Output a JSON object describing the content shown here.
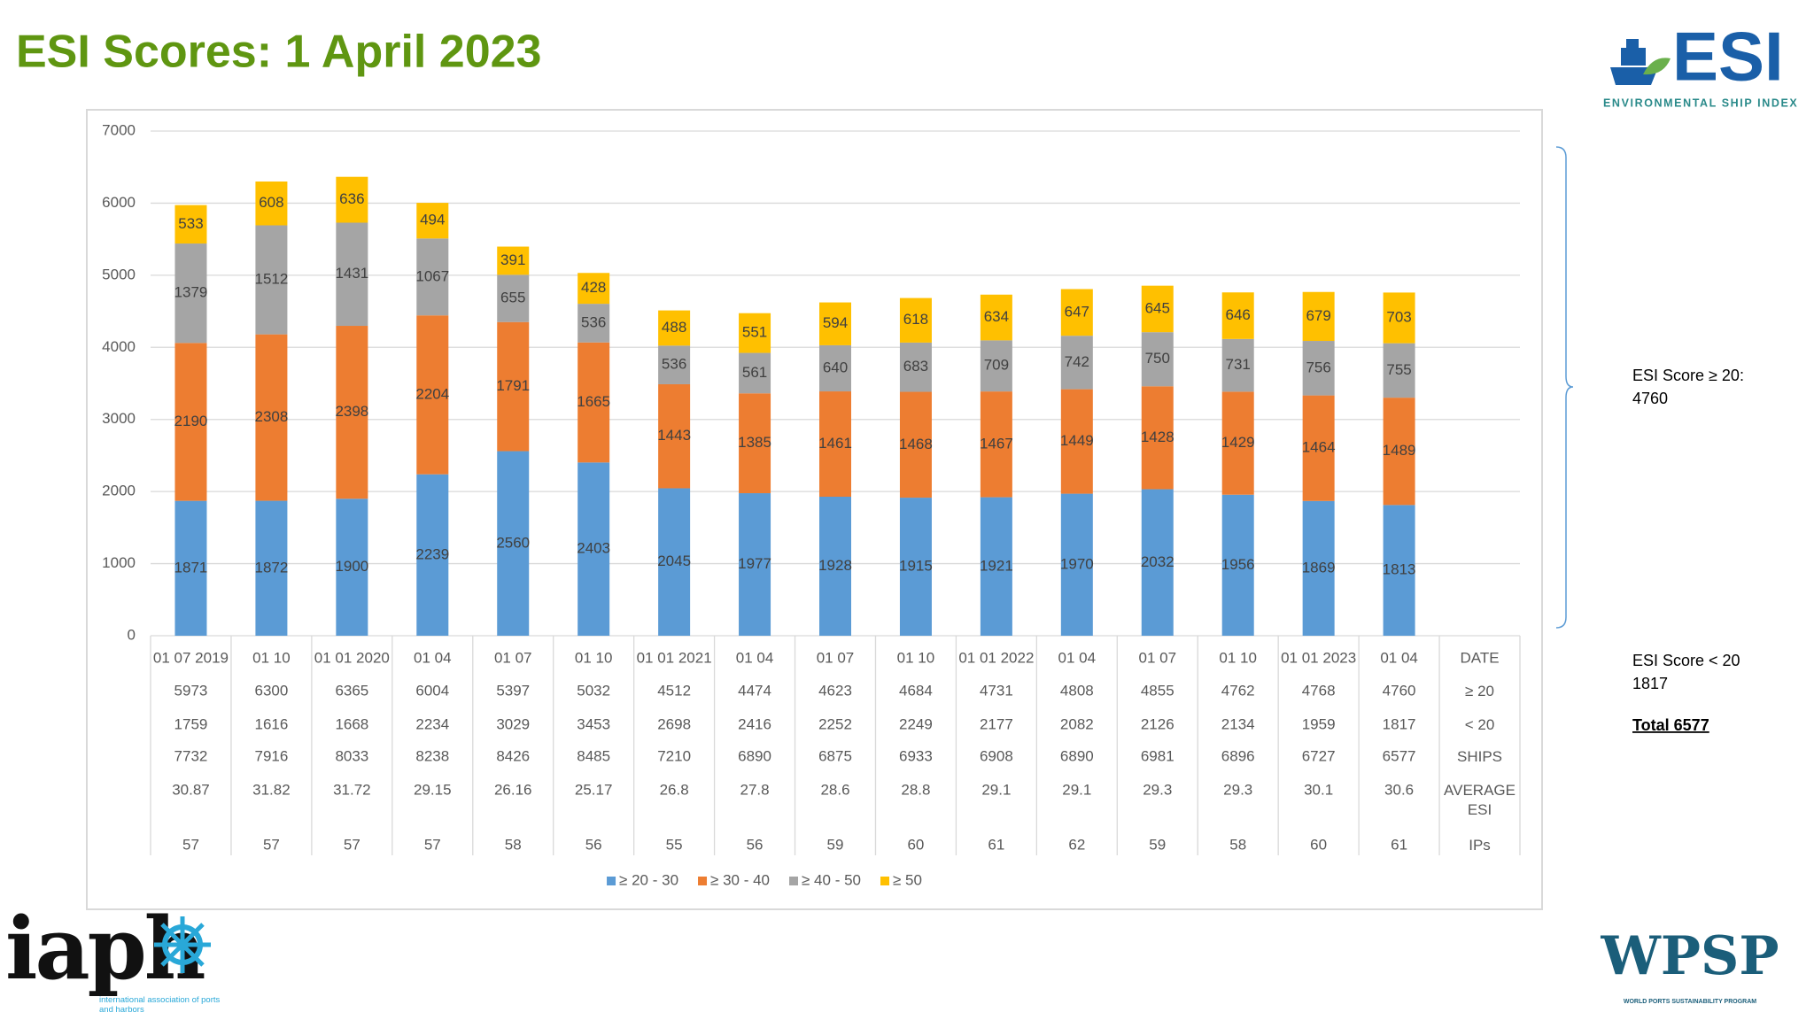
{
  "title": "ESI Scores: 1 April 2023",
  "chart_data": {
    "type": "bar",
    "stacked": true,
    "categories": [
      "01 07 2019",
      "01 10",
      "01 01 2020",
      "01 04",
      "01 07",
      "01 10",
      "01 01 2021",
      "01 04",
      "01 07",
      "01 10",
      "01 01 2022",
      "01 04",
      "01 07",
      "01 10",
      "01 01 2023",
      "01 04"
    ],
    "series": [
      {
        "name": "≥ 20 - 30",
        "color": "#5b9bd5",
        "values": [
          1871,
          1872,
          1900,
          2239,
          2560,
          2403,
          2045,
          1977,
          1928,
          1915,
          1921,
          1970,
          2032,
          1956,
          1869,
          1813
        ]
      },
      {
        "name": "≥ 30 - 40",
        "color": "#ed7d31",
        "values": [
          2190,
          2308,
          2398,
          2204,
          1791,
          1665,
          1443,
          1385,
          1461,
          1468,
          1467,
          1449,
          1428,
          1429,
          1464,
          1489
        ]
      },
      {
        "name": "≥ 40 - 50",
        "color": "#a5a5a5",
        "values": [
          1379,
          1512,
          1431,
          1067,
          655,
          536,
          536,
          561,
          640,
          683,
          709,
          742,
          750,
          731,
          756,
          755
        ]
      },
      {
        "name": "≥ 50",
        "color": "#ffc000",
        "values": [
          533,
          608,
          636,
          494,
          391,
          428,
          488,
          551,
          594,
          618,
          634,
          647,
          645,
          646,
          679,
          703
        ]
      }
    ],
    "ylim": [
      0,
      7000
    ],
    "yticks": [
      0,
      1000,
      2000,
      3000,
      4000,
      5000,
      6000,
      7000
    ],
    "grid": true,
    "legend": "bottom",
    "table": {
      "header": "DATE",
      "rows": [
        {
          "label": "≥ 20",
          "values": [
            5973,
            6300,
            6365,
            6004,
            5397,
            5032,
            4512,
            4474,
            4623,
            4684,
            4731,
            4808,
            4855,
            4762,
            4768,
            4760
          ]
        },
        {
          "label": "< 20",
          "values": [
            1759,
            1616,
            1668,
            2234,
            3029,
            3453,
            2698,
            2416,
            2252,
            2249,
            2177,
            2082,
            2126,
            2134,
            1959,
            1817
          ]
        },
        {
          "label": "SHIPS",
          "values": [
            7732,
            7916,
            8033,
            8238,
            8426,
            8485,
            7210,
            6890,
            6875,
            6933,
            6908,
            6890,
            6981,
            6896,
            6727,
            6577
          ]
        },
        {
          "label": "AVERAGE ESI",
          "values": [
            30.87,
            31.82,
            31.72,
            29.15,
            26.16,
            25.17,
            26.8,
            27.8,
            28.6,
            28.8,
            29.1,
            29.1,
            29.3,
            29.3,
            30.1,
            30.6
          ]
        },
        {
          "label": "IPs",
          "values": [
            57,
            57,
            57,
            57,
            58,
            56,
            55,
            56,
            59,
            60,
            61,
            62,
            59,
            58,
            60,
            61
          ]
        }
      ]
    }
  },
  "notes": {
    "above_20": {
      "label": "ESI Score ≥ 20:",
      "value": "4760"
    },
    "below_20": {
      "label": "ESI Score < 20",
      "value": "1817"
    },
    "total": "Total 6577"
  },
  "logos": {
    "esi": {
      "name": "ESI",
      "tagline": "ENVIRONMENTAL SHIP INDEX"
    },
    "iaph": {
      "name": "iaph",
      "tagline": "international association of ports and harbors"
    },
    "wpsp": {
      "name": "WPSP",
      "tagline": "WORLD PORTS SUSTAINABILITY PROGRAM"
    }
  }
}
